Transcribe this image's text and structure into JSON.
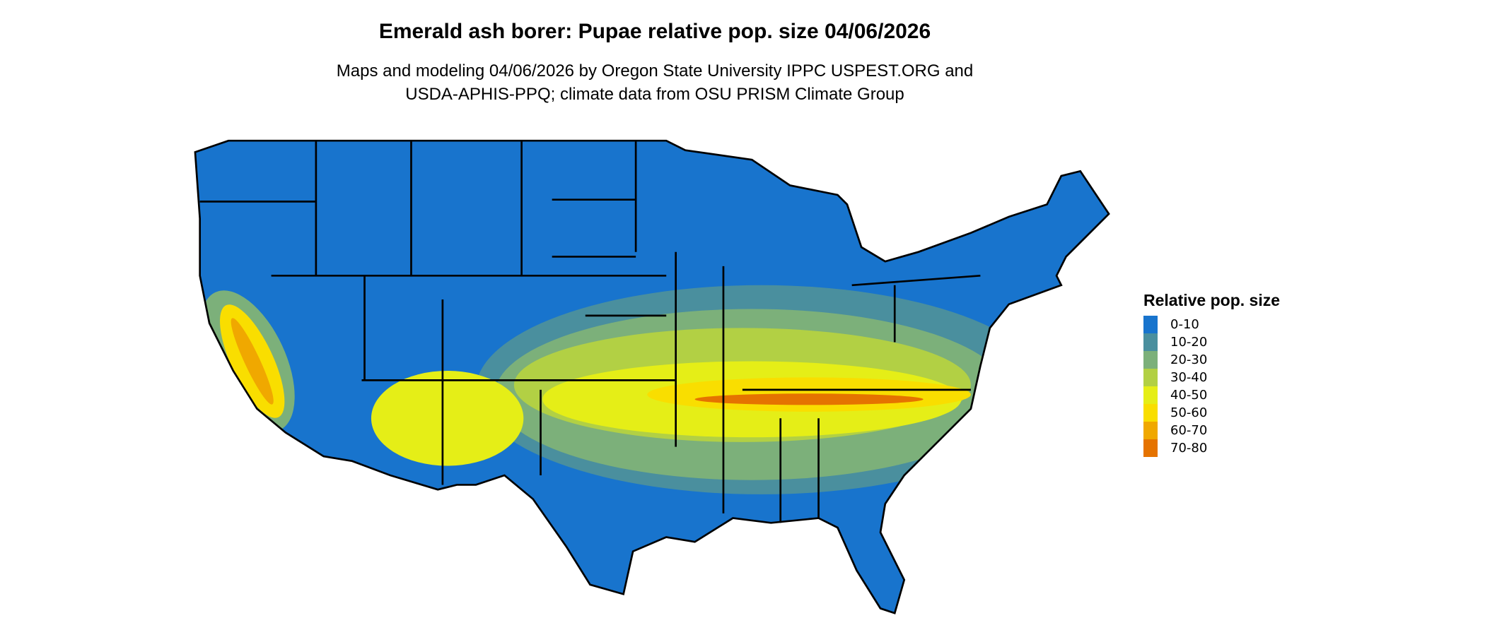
{
  "title": "Emerald ash borer: Pupae relative pop. size 04/06/2026",
  "subtitle_lines": [
    "Maps and modeling 04/06/2026 by Oregon State University IPPC USPEST.ORG and",
    "USDA-APHIS-PPQ; climate data from OSU PRISM Climate Group"
  ],
  "map": {
    "region": "Contiguous United States",
    "background_class_color": "#1874CD"
  },
  "legend": {
    "title": "Relative pop. size",
    "items": [
      {
        "label": "0-10",
        "color": "#1874CD"
      },
      {
        "label": "10-20",
        "color": "#4A8F9E"
      },
      {
        "label": "20-30",
        "color": "#7CB07A"
      },
      {
        "label": "30-40",
        "color": "#B2D044"
      },
      {
        "label": "40-50",
        "color": "#E5EE17"
      },
      {
        "label": "50-60",
        "color": "#F9DE00"
      },
      {
        "label": "60-70",
        "color": "#F0A800"
      },
      {
        "label": "70-80",
        "color": "#E57300"
      }
    ]
  }
}
